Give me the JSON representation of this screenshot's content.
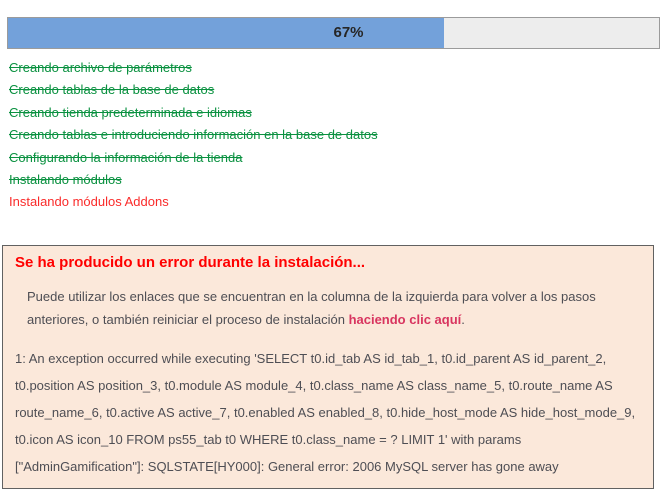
{
  "progress": {
    "percent": 67,
    "percent_label": "67%",
    "fill_color": "#73a1da",
    "track_color": "#ededed"
  },
  "steps": {
    "done_color": "#0a9140",
    "error_color": "#fa2b2a",
    "items": [
      {
        "label": "Creando archivo de parámetros",
        "status": "done"
      },
      {
        "label": "Creando tablas de la base de datos",
        "status": "done"
      },
      {
        "label": "Creando tienda predeterminada e idiomas",
        "status": "done"
      },
      {
        "label": "Creando tablas e introduciendo información en la base de datos",
        "status": "done"
      },
      {
        "label": "Configurando la información de la tienda",
        "status": "done"
      },
      {
        "label": "Instalando módulos",
        "status": "done"
      },
      {
        "label": "Instalando módulos Addons",
        "status": "error"
      }
    ]
  },
  "error_box": {
    "background": "#fbe8da",
    "title": "Se ha producido un error durante la instalación...",
    "title_color": "#ff0000",
    "hint_before": "Puede utilizar los enlaces que se encuentran en la columna de la izquierda para volver a los pasos anteriores, o también reiniciar el proceso de instalación ",
    "hint_link": "haciendo clic aquí",
    "hint_after": ".",
    "link_color": "#d8345f",
    "detail": "1: An exception occurred while executing 'SELECT t0.id_tab AS id_tab_1, t0.id_parent AS id_parent_2, t0.position AS position_3, t0.module AS module_4, t0.class_name AS class_name_5, t0.route_name AS route_name_6, t0.active AS active_7, t0.enabled AS enabled_8, t0.hide_host_mode AS hide_host_mode_9, t0.icon AS icon_10 FROM ps55_tab t0 WHERE t0.class_name = ? LIMIT 1' with params [\"AdminGamification\"]: SQLSTATE[HY000]: General error: 2006 MySQL server has gone away"
  }
}
